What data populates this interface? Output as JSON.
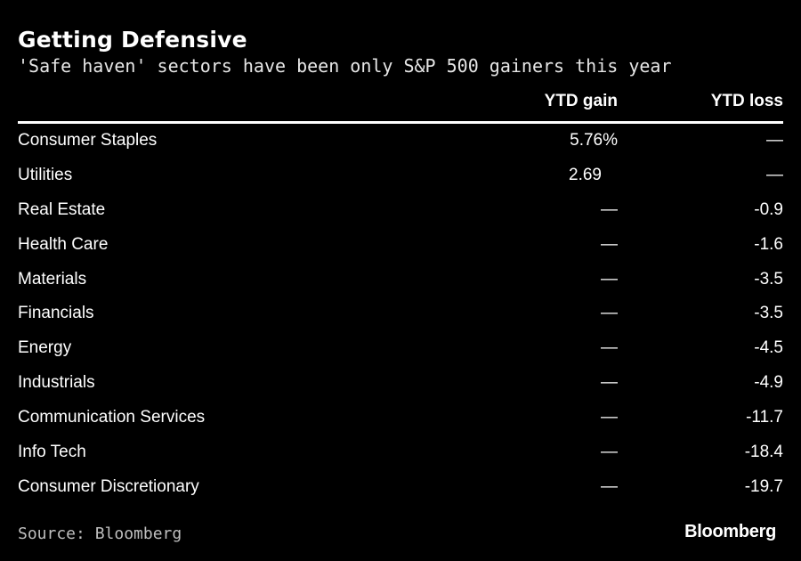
{
  "chart_data": {
    "type": "table",
    "title": "Getting Defensive",
    "subtitle": "'Safe haven' sectors have been only S&P 500 gainers this year",
    "columns": [
      "",
      "YTD gain",
      "YTD loss"
    ],
    "rows": [
      {
        "sector": "Consumer Staples",
        "gain": "5.76%",
        "loss": "—"
      },
      {
        "sector": "Utilities",
        "gain": "2.69",
        "loss": "—"
      },
      {
        "sector": "Real Estate",
        "gain": "—",
        "loss": "-0.9"
      },
      {
        "sector": "Health Care",
        "gain": "—",
        "loss": "-1.6"
      },
      {
        "sector": "Materials",
        "gain": "—",
        "loss": "-3.5"
      },
      {
        "sector": "Financials",
        "gain": "—",
        "loss": "-3.5"
      },
      {
        "sector": "Energy",
        "gain": "—",
        "loss": "-4.5"
      },
      {
        "sector": "Industrials",
        "gain": "—",
        "loss": "-4.9"
      },
      {
        "sector": "Communication Services",
        "gain": "—",
        "loss": "-11.7"
      },
      {
        "sector": "Info Tech",
        "gain": "—",
        "loss": "-18.4"
      },
      {
        "sector": "Consumer Discretionary",
        "gain": "—",
        "loss": "-19.7"
      }
    ],
    "source": "Source: Bloomberg",
    "brand": "Bloomberg"
  },
  "colors": {
    "background": "#000000",
    "text": "#ffffff",
    "source_text": "#bfbfbf"
  }
}
